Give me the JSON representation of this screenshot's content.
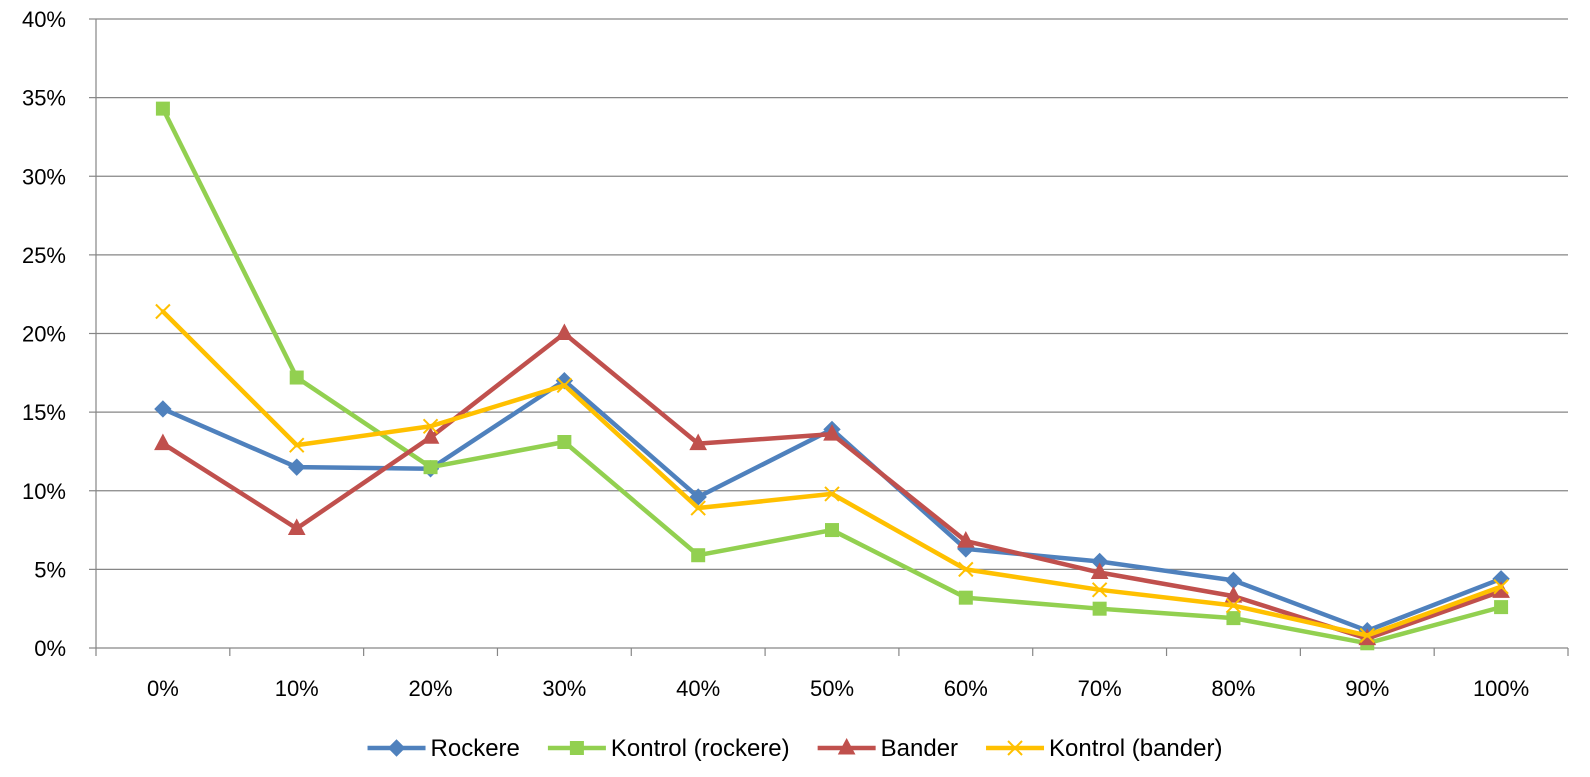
{
  "chart_data": {
    "type": "line",
    "title": "",
    "xlabel": "",
    "ylabel": "",
    "categories": [
      "0%",
      "10%",
      "20%",
      "30%",
      "40%",
      "50%",
      "60%",
      "70%",
      "80%",
      "90%",
      "100%"
    ],
    "y_ticks": [
      "0%",
      "5%",
      "10%",
      "15%",
      "20%",
      "25%",
      "30%",
      "35%",
      "40%"
    ],
    "ylim": [
      0,
      40
    ],
    "grid": true,
    "legend_position": "bottom",
    "series": [
      {
        "name": "Rockere",
        "color": "#4F81BD",
        "marker": "diamond",
        "values": [
          15.2,
          11.5,
          11.4,
          17.0,
          9.6,
          13.9,
          6.3,
          5.5,
          4.3,
          1.1,
          4.4
        ]
      },
      {
        "name": "Kontrol (rockere)",
        "color": "#92D050",
        "marker": "square",
        "values": [
          34.3,
          17.2,
          11.5,
          13.1,
          5.9,
          7.5,
          3.2,
          2.5,
          1.9,
          0.3,
          2.6
        ]
      },
      {
        "name": "Bander",
        "color": "#C0504D",
        "marker": "triangle",
        "values": [
          13.0,
          7.6,
          13.4,
          20.0,
          13.0,
          13.6,
          6.8,
          4.8,
          3.3,
          0.6,
          3.6
        ]
      },
      {
        "name": "Kontrol (bander)",
        "color": "#FFC000",
        "marker": "x",
        "values": [
          21.4,
          12.9,
          14.1,
          16.7,
          8.9,
          9.8,
          5.0,
          3.7,
          2.7,
          0.8,
          3.9
        ]
      }
    ]
  }
}
